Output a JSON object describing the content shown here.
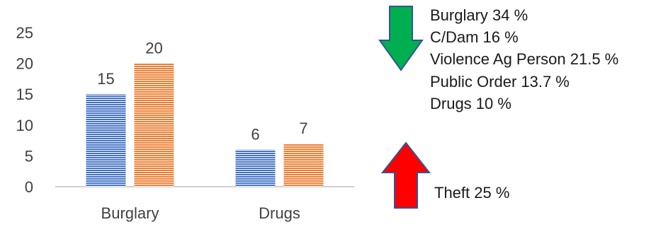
{
  "chart_data": {
    "type": "bar",
    "categories": [
      "Burglary",
      "Drugs"
    ],
    "series": [
      {
        "values": [
          15,
          6
        ],
        "color": "#4472c4",
        "pattern": "horizontal-lines"
      },
      {
        "values": [
          20,
          7
        ],
        "color": "#ed7d31",
        "pattern": "horizontal-lines"
      }
    ],
    "y_ticks": [
      "0",
      "5",
      "10",
      "15",
      "20",
      "25"
    ],
    "ylim": [
      0,
      25
    ],
    "grid": false,
    "data_labels": true
  },
  "annotations": {
    "down_list": [
      "Burglary 34 %",
      "C/Dam 16 %",
      "Violence Ag Person 21.5 %",
      "Public Order 13.7 %",
      "Drugs 10 %"
    ],
    "up_list": [
      "Theft 25 %"
    ],
    "down_arrow_color": "#00b050",
    "up_arrow_color": "#ff0000",
    "arrow_outline_color": "#2f5597",
    "down_arrow_icon": "arrow-down-icon",
    "up_arrow_icon": "arrow-up-icon"
  }
}
